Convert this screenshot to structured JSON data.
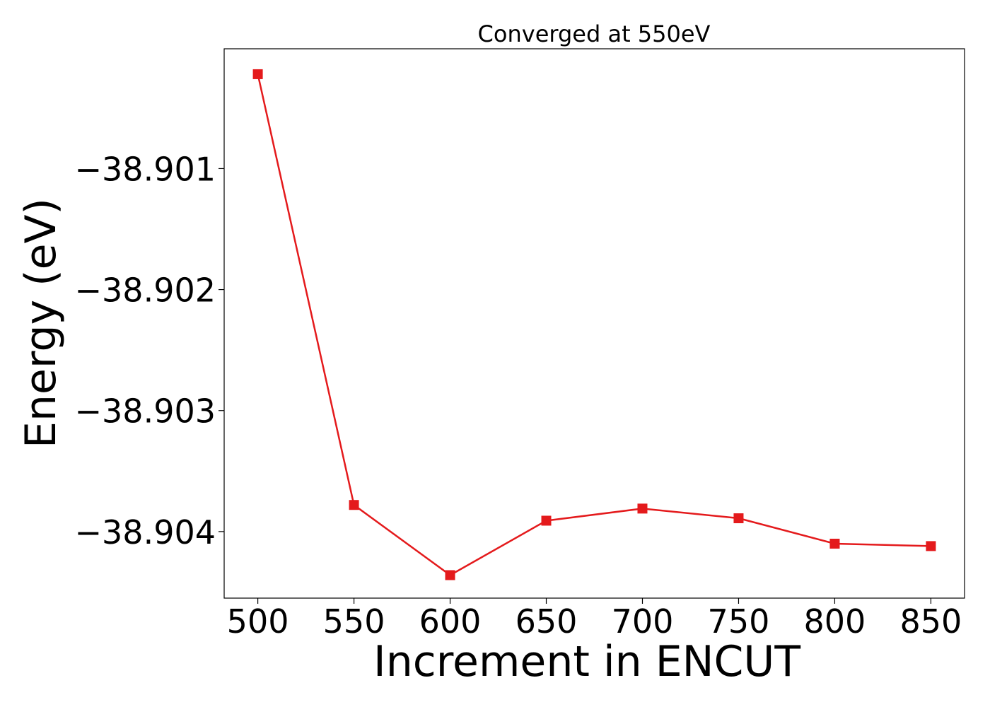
{
  "chart_data": {
    "type": "line",
    "title": "Converged at 550eV",
    "xlabel": "Increment in ENCUT",
    "ylabel": "Energy (eV)",
    "x": [
      500,
      550,
      600,
      650,
      700,
      750,
      800,
      850
    ],
    "series": [
      {
        "values": [
          -38.90022,
          -38.90378,
          -38.90436,
          -38.90391,
          -38.90381,
          -38.90389,
          -38.9041,
          -38.90412
        ],
        "color": "#e41a1c",
        "marker": "square"
      }
    ],
    "xlim": [
      482.5,
      867.5
    ],
    "ylim": [
      -38.90455,
      -38.90001
    ],
    "xticks": [
      500,
      550,
      600,
      650,
      700,
      750,
      800,
      850
    ],
    "xtick_labels": [
      "500",
      "550",
      "600",
      "650",
      "700",
      "750",
      "800",
      "850"
    ],
    "yticks": [
      -38.901,
      -38.902,
      -38.903,
      -38.904
    ],
    "ytick_labels": [
      "−38.901",
      "−38.902",
      "−38.903",
      "−38.904"
    ],
    "grid": false,
    "legend": false
  }
}
